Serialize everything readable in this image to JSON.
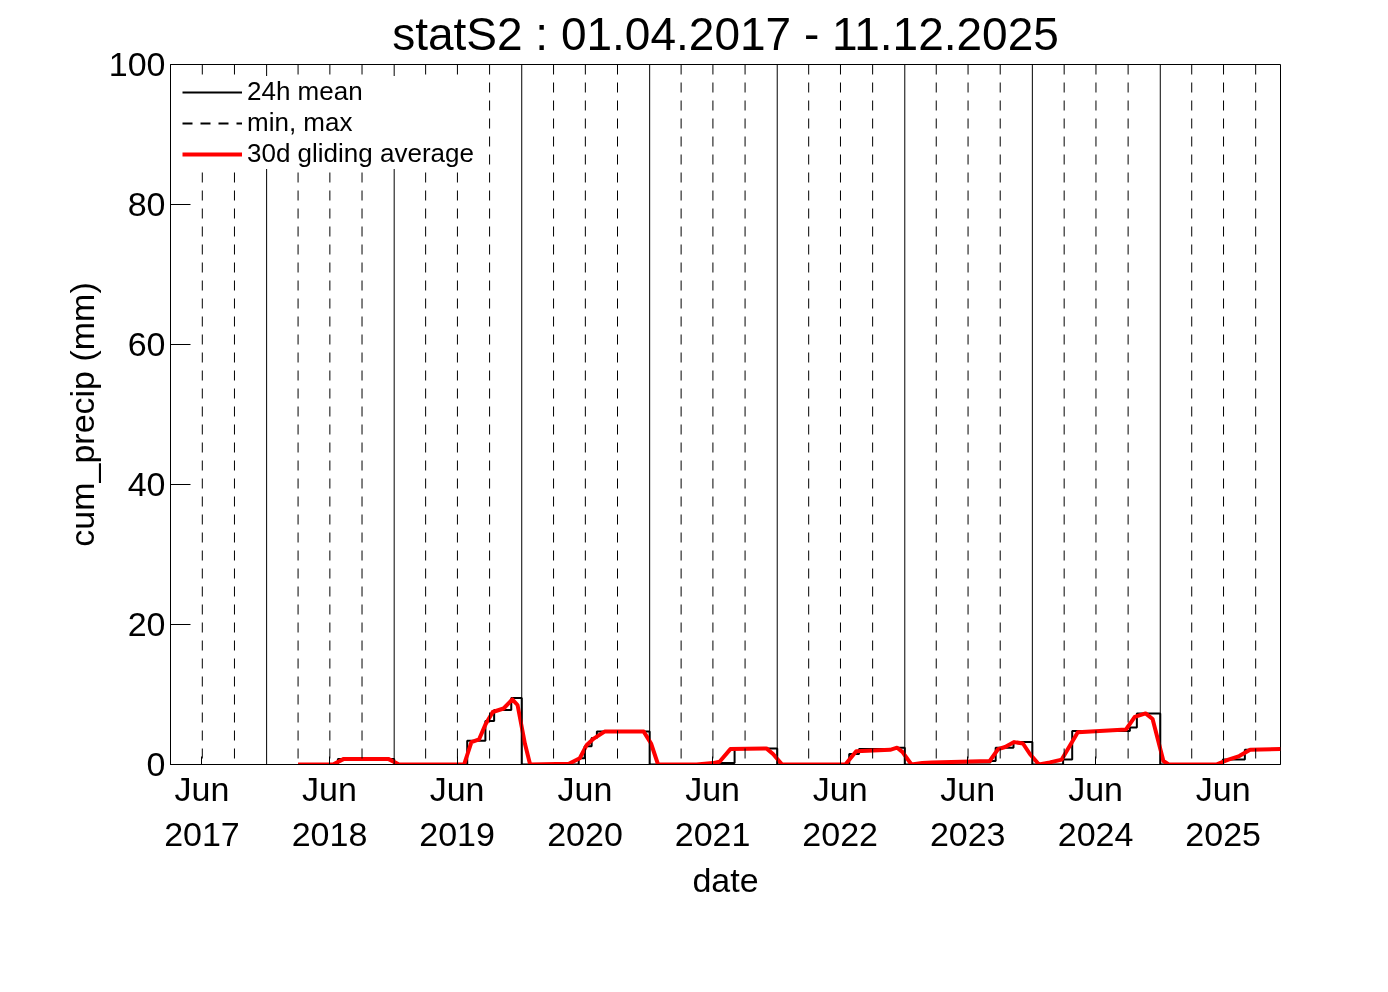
{
  "chart_data": {
    "type": "line",
    "title": "statS2 : 01.04.2017 - 11.12.2025",
    "xlabel": "date",
    "ylabel": "cum_precip (mm)",
    "xlim": [
      "2017-04-01",
      "2025-12-11"
    ],
    "xticks": [
      {
        "value": "2017-06-30",
        "label": "Jun\n2017"
      },
      {
        "value": "2018-06-30",
        "label": "Jun\n2018"
      },
      {
        "value": "2019-06-30",
        "label": "Jun\n2019"
      },
      {
        "value": "2020-06-30",
        "label": "Jun\n2020"
      },
      {
        "value": "2021-06-30",
        "label": "Jun\n2021"
      },
      {
        "value": "2022-06-30",
        "label": "Jun\n2022"
      },
      {
        "value": "2023-06-30",
        "label": "Jun\n2023"
      },
      {
        "value": "2024-06-30",
        "label": "Jun\n2024"
      },
      {
        "value": "2025-06-30",
        "label": "Jun\n2025"
      }
    ],
    "ylim": [
      0,
      100
    ],
    "yticks": [
      0,
      20,
      40,
      60,
      80,
      100
    ],
    "legend": "top left",
    "ref_lines": [
      {
        "axis": "x",
        "value": "2017-07-01",
        "line_style": "dashed",
        "color": "#000000"
      },
      {
        "axis": "x",
        "value": "2017-10-01",
        "line_style": "dashed",
        "color": "#000000"
      },
      {
        "axis": "x",
        "value": "2018-01-01",
        "line_style": "solid",
        "color": "#000000"
      },
      {
        "axis": "x",
        "value": "2018-04-01",
        "line_style": "dashed",
        "color": "#000000"
      },
      {
        "axis": "x",
        "value": "2018-07-01",
        "line_style": "dashed",
        "color": "#000000"
      },
      {
        "axis": "x",
        "value": "2018-10-01",
        "line_style": "dashed",
        "color": "#000000"
      },
      {
        "axis": "x",
        "value": "2019-01-01",
        "line_style": "solid",
        "color": "#000000"
      },
      {
        "axis": "x",
        "value": "2019-04-01",
        "line_style": "dashed",
        "color": "#000000"
      },
      {
        "axis": "x",
        "value": "2019-07-01",
        "line_style": "dashed",
        "color": "#000000"
      },
      {
        "axis": "x",
        "value": "2019-10-01",
        "line_style": "dashed",
        "color": "#000000"
      },
      {
        "axis": "x",
        "value": "2020-01-01",
        "line_style": "solid",
        "color": "#000000"
      },
      {
        "axis": "x",
        "value": "2020-04-01",
        "line_style": "dashed",
        "color": "#000000"
      },
      {
        "axis": "x",
        "value": "2020-07-01",
        "line_style": "dashed",
        "color": "#000000"
      },
      {
        "axis": "x",
        "value": "2020-10-01",
        "line_style": "dashed",
        "color": "#000000"
      },
      {
        "axis": "x",
        "value": "2021-01-01",
        "line_style": "solid",
        "color": "#000000"
      },
      {
        "axis": "x",
        "value": "2021-04-01",
        "line_style": "dashed",
        "color": "#000000"
      },
      {
        "axis": "x",
        "value": "2021-07-01",
        "line_style": "dashed",
        "color": "#000000"
      },
      {
        "axis": "x",
        "value": "2021-10-01",
        "line_style": "dashed",
        "color": "#000000"
      },
      {
        "axis": "x",
        "value": "2022-01-01",
        "line_style": "solid",
        "color": "#000000"
      },
      {
        "axis": "x",
        "value": "2022-04-01",
        "line_style": "dashed",
        "color": "#000000"
      },
      {
        "axis": "x",
        "value": "2022-07-01",
        "line_style": "dashed",
        "color": "#000000"
      },
      {
        "axis": "x",
        "value": "2022-10-01",
        "line_style": "dashed",
        "color": "#000000"
      },
      {
        "axis": "x",
        "value": "2023-01-01",
        "line_style": "solid",
        "color": "#000000"
      },
      {
        "axis": "x",
        "value": "2023-04-01",
        "line_style": "dashed",
        "color": "#000000"
      },
      {
        "axis": "x",
        "value": "2023-07-01",
        "line_style": "dashed",
        "color": "#000000"
      },
      {
        "axis": "x",
        "value": "2023-10-01",
        "line_style": "dashed",
        "color": "#000000"
      },
      {
        "axis": "x",
        "value": "2024-01-01",
        "line_style": "solid",
        "color": "#000000"
      },
      {
        "axis": "x",
        "value": "2024-04-01",
        "line_style": "dashed",
        "color": "#000000"
      },
      {
        "axis": "x",
        "value": "2024-07-01",
        "line_style": "dashed",
        "color": "#000000"
      },
      {
        "axis": "x",
        "value": "2024-10-01",
        "line_style": "dashed",
        "color": "#000000"
      },
      {
        "axis": "x",
        "value": "2025-01-01",
        "line_style": "solid",
        "color": "#000000"
      },
      {
        "axis": "x",
        "value": "2025-04-01",
        "line_style": "dashed",
        "color": "#000000"
      },
      {
        "axis": "x",
        "value": "2025-07-01",
        "line_style": "dashed",
        "color": "#000000"
      },
      {
        "axis": "x",
        "value": "2025-10-01",
        "line_style": "dashed",
        "color": "#000000"
      }
    ],
    "series": [
      {
        "name": "24h mean",
        "type": "step",
        "color": "#000000",
        "line_style": "solid",
        "x": [
          "2018-04-01",
          "2018-07-24",
          "2019-01-01",
          "2019-07-29",
          "2019-09-19",
          "2019-10-14",
          "2019-12-02",
          "2020-01-01",
          "2020-06-12",
          "2020-06-29",
          "2020-07-19",
          "2020-08-03",
          "2021-01-01",
          "2021-07-06",
          "2021-09-01",
          "2022-01-01",
          "2022-07-26",
          "2022-08-23",
          "2022-12-12",
          "2023-01-01",
          "2023-03-11",
          "2023-09-03",
          "2023-09-18",
          "2023-11-08",
          "2024-01-01",
          "2024-03-29",
          "2024-04-24",
          "2024-10-06",
          "2024-10-26",
          "2025-01-01",
          "2025-06-29",
          "2025-08-31",
          "2025-12-11"
        ],
        "values": [
          0,
          0.8,
          0,
          3.4,
          6.2,
          7.8,
          9.5,
          0,
          0.9,
          2.6,
          3.8,
          4.7,
          0,
          0.2,
          2.3,
          0,
          1.5,
          2.2,
          2.4,
          0,
          0.3,
          0.5,
          2.4,
          3.2,
          0,
          0.7,
          4.8,
          5.3,
          7.3,
          0,
          0.7,
          2.1,
          2.1
        ]
      },
      {
        "name": "min, max",
        "type": "step",
        "color": "#000000",
        "line_style": "dashed",
        "values": [
          null,
          null
        ]
      },
      {
        "name": "30d gliding average",
        "color": "#ff0000",
        "line_style": "solid",
        "x": [
          "2018-04-01",
          "2018-07-10",
          "2018-08-10",
          "2018-12-15",
          "2019-01-15",
          "2019-07-20",
          "2019-08-10",
          "2019-09-01",
          "2019-09-20",
          "2019-10-10",
          "2019-11-10",
          "2019-12-05",
          "2019-12-20",
          "2020-01-10",
          "2020-01-25",
          "2020-05-15",
          "2020-06-15",
          "2020-07-05",
          "2020-07-25",
          "2020-08-25",
          "2020-12-15",
          "2021-01-05",
          "2021-01-25",
          "2021-05-15",
          "2021-07-01",
          "2021-07-20",
          "2021-08-20",
          "2021-12-01",
          "2021-12-20",
          "2022-01-15",
          "2022-07-15",
          "2022-08-15",
          "2022-11-20",
          "2022-12-10",
          "2022-12-25",
          "2023-01-20",
          "2023-02-20",
          "2023-03-20",
          "2023-09-01",
          "2023-09-25",
          "2023-10-15",
          "2023-11-10",
          "2023-12-05",
          "2023-12-25",
          "2024-01-20",
          "2024-02-20",
          "2024-03-25",
          "2024-05-10",
          "2024-09-25",
          "2024-10-20",
          "2024-11-20",
          "2024-12-10",
          "2025-01-10",
          "2025-01-25",
          "2025-06-10",
          "2025-07-15",
          "2025-08-15",
          "2025-09-15",
          "2025-12-11"
        ],
        "values": [
          0,
          0,
          0.8,
          0.8,
          0,
          0,
          3.2,
          3.6,
          5.8,
          7.5,
          8.0,
          9.3,
          8.5,
          3,
          0,
          0.1,
          0.9,
          2.8,
          3.7,
          4.7,
          4.7,
          3,
          0,
          0,
          0.2,
          0.4,
          2.2,
          2.3,
          1.5,
          0,
          0,
          1.9,
          2.1,
          2.4,
          1.8,
          0,
          0.2,
          0.3,
          0.5,
          2.2,
          2.5,
          3.2,
          3.0,
          1.5,
          0,
          0.3,
          0.7,
          4.6,
          5.0,
          6.8,
          7.3,
          6.5,
          0.5,
          0,
          0,
          0.7,
          1.2,
          2.1,
          2.2
        ]
      }
    ]
  }
}
